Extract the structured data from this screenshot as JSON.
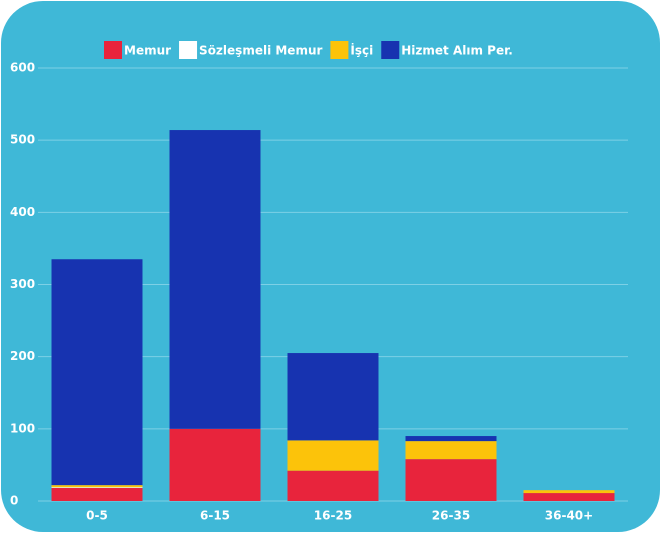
{
  "chart_data": {
    "type": "stacked_bar",
    "categories": [
      "0-5",
      "6-15",
      "16-25",
      "26-35",
      "36-40+"
    ],
    "series": [
      {
        "name": "Memur",
        "color": "#e8243c",
        "values": [
          18,
          100,
          42,
          58,
          11
        ]
      },
      {
        "name": "Sözleşmeli Memur",
        "color": "#ffffff",
        "values": [
          1,
          0,
          0,
          0,
          0
        ]
      },
      {
        "name": "İşçi",
        "color": "#fcc30a",
        "values": [
          3,
          0,
          42,
          25,
          4
        ]
      },
      {
        "name": "Hizmet Alım Per.",
        "color": "#1733b0",
        "values": [
          313,
          414,
          121,
          7,
          0
        ]
      }
    ],
    "ylim": [
      0,
      600
    ],
    "yticks": [
      0,
      100,
      200,
      300,
      400,
      500,
      600
    ],
    "grid": true,
    "legend": "top"
  }
}
